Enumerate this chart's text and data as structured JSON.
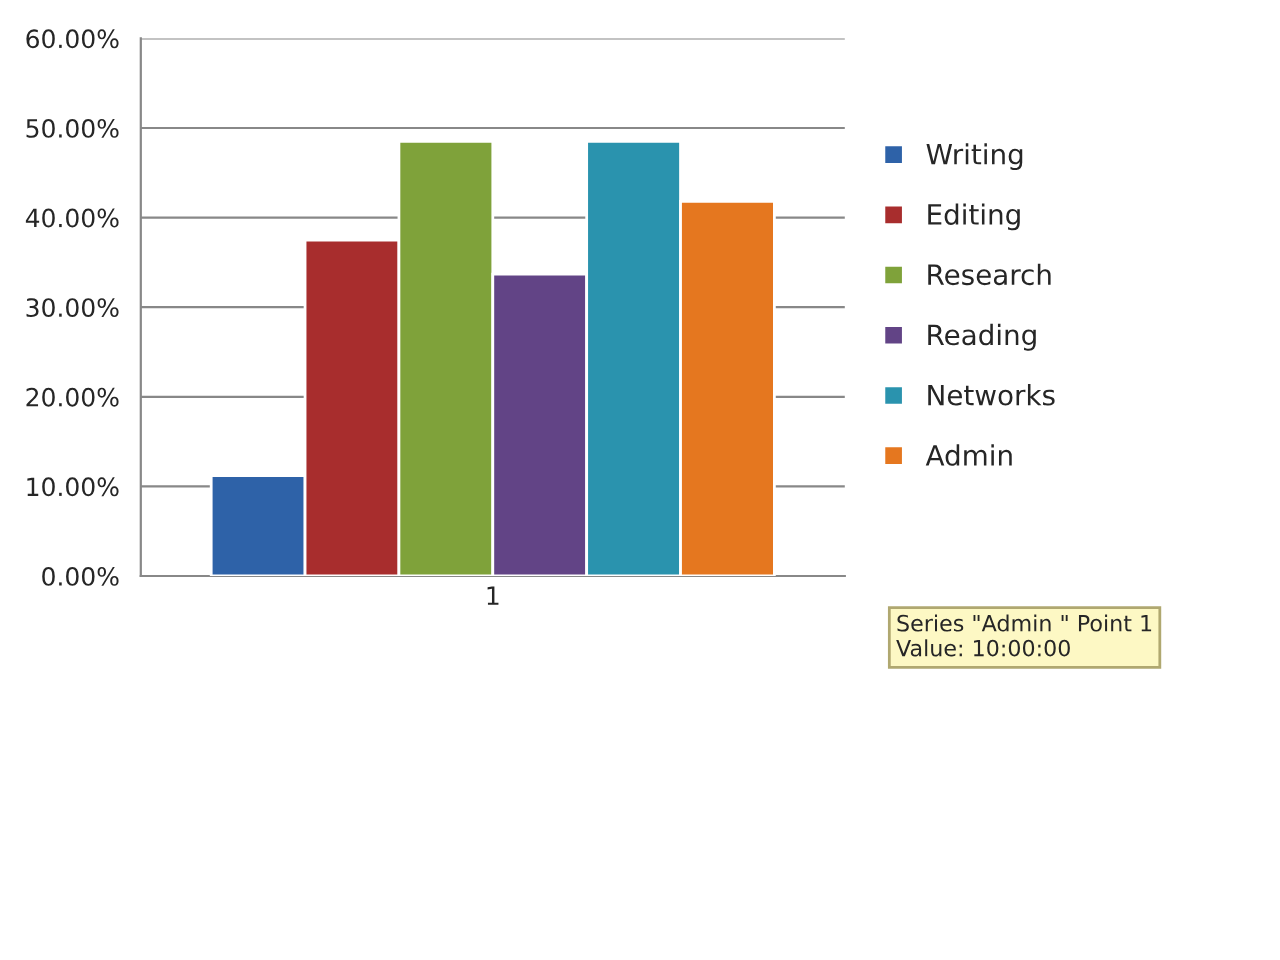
{
  "chart_data": {
    "type": "bar",
    "categories": [
      "1"
    ],
    "series": [
      {
        "name": "Writing",
        "color": "#2e62a8",
        "values": [
          11.2
        ]
      },
      {
        "name": "Editing",
        "color": "#a82d2d",
        "values": [
          37.5
        ]
      },
      {
        "name": "Research",
        "color": "#7fa23a",
        "values": [
          48.5
        ]
      },
      {
        "name": "Reading",
        "color": "#624486",
        "values": [
          33.7
        ]
      },
      {
        "name": "Networks",
        "color": "#2a93ae",
        "values": [
          48.5
        ]
      },
      {
        "name": "Admin",
        "color": "#e5771f",
        "values": [
          41.8
        ]
      }
    ],
    "ylim": [
      0,
      60
    ],
    "yticks": [
      {
        "value": 0,
        "label": "0.00%"
      },
      {
        "value": 10,
        "label": "10.00%"
      },
      {
        "value": 20,
        "label": "20.00%"
      },
      {
        "value": 30,
        "label": "30.00%"
      },
      {
        "value": 40,
        "label": "40.00%"
      },
      {
        "value": 50,
        "label": "50.00%"
      },
      {
        "value": 60,
        "label": "60.00%"
      }
    ],
    "grid": "y",
    "legend": "right",
    "annotations": [
      "Series \"Admin \" Point 1\nValue: 10:00:00"
    ]
  }
}
